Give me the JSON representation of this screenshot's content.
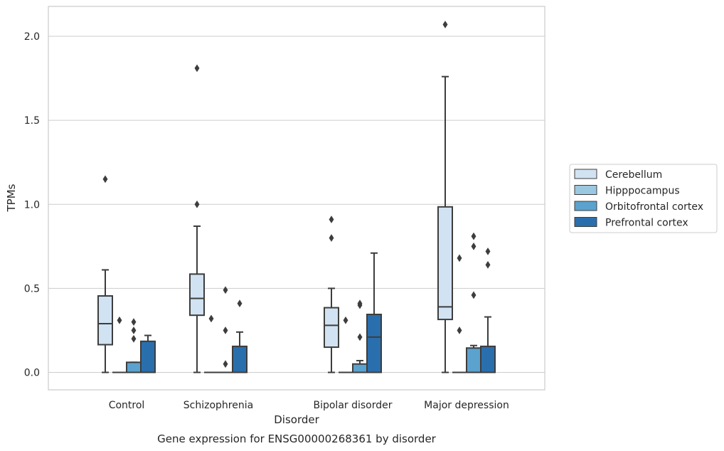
{
  "caption": "Gene expression for ENSG00000268361 by disorder",
  "chart_data": {
    "type": "box",
    "title": "",
    "xlabel": "Disorder",
    "ylabel": "TPMs",
    "ylim": [
      -0.1,
      2.18
    ],
    "yticks": [
      0.0,
      0.5,
      1.0,
      1.5,
      2.0
    ],
    "ytick_labels": [
      "0.0",
      "0.5",
      "1.0",
      "1.5",
      "2.0"
    ],
    "grid": "horizontal",
    "legend_position": "right",
    "categories": [
      "Control",
      "Schizophrenia",
      "Bipolar disorder",
      "Major depression"
    ],
    "series": [
      {
        "name": "Cerebellum",
        "color": "#d1e2f2",
        "boxes": [
          {
            "q1": 0.165,
            "median": 0.29,
            "q3": 0.455,
            "whisker_low": 0.0,
            "whisker_high": 0.61,
            "outliers": [
              1.15
            ]
          },
          {
            "q1": 0.34,
            "median": 0.44,
            "q3": 0.585,
            "whisker_low": 0.0,
            "whisker_high": 0.87,
            "outliers": [
              1.0,
              1.81
            ]
          },
          {
            "q1": 0.15,
            "median": 0.28,
            "q3": 0.385,
            "whisker_low": 0.0,
            "whisker_high": 0.5,
            "outliers": [
              0.8,
              0.91
            ]
          },
          {
            "q1": 0.315,
            "median": 0.39,
            "q3": 0.985,
            "whisker_low": 0.0,
            "whisker_high": 1.76,
            "outliers": [
              2.07
            ]
          }
        ]
      },
      {
        "name": "Hipppocampus",
        "color": "#9ac8e0",
        "boxes": [
          {
            "q1": 0.0,
            "median": 0.0,
            "q3": 0.0,
            "whisker_low": 0.0,
            "whisker_high": 0.0,
            "outliers": [
              0.31
            ]
          },
          {
            "q1": 0.0,
            "median": 0.0,
            "q3": 0.0,
            "whisker_low": 0.0,
            "whisker_high": 0.0,
            "outliers": [
              0.32
            ]
          },
          {
            "q1": 0.0,
            "median": 0.0,
            "q3": 0.0,
            "whisker_low": 0.0,
            "whisker_high": 0.0,
            "outliers": [
              0.31
            ]
          },
          {
            "q1": 0.0,
            "median": 0.0,
            "q3": 0.0,
            "whisker_low": 0.0,
            "whisker_high": 0.0,
            "outliers": [
              0.25,
              0.68
            ]
          }
        ]
      },
      {
        "name": "Orbitofrontal cortex",
        "color": "#5ba2cf",
        "boxes": [
          {
            "q1": 0.0,
            "median": 0.0,
            "q3": 0.06,
            "whisker_low": 0.0,
            "whisker_high": 0.06,
            "outliers": [
              0.2,
              0.25,
              0.3
            ]
          },
          {
            "q1": 0.0,
            "median": 0.0,
            "q3": 0.0,
            "whisker_low": 0.0,
            "whisker_high": 0.0,
            "outliers": [
              0.05,
              0.25,
              0.49
            ]
          },
          {
            "q1": 0.0,
            "median": 0.0,
            "q3": 0.05,
            "whisker_low": 0.0,
            "whisker_high": 0.07,
            "outliers": [
              0.21,
              0.4,
              0.41
            ]
          },
          {
            "q1": 0.0,
            "median": 0.0,
            "q3": 0.145,
            "whisker_low": 0.0,
            "whisker_high": 0.16,
            "outliers": [
              0.46,
              0.75,
              0.81
            ]
          }
        ]
      },
      {
        "name": "Prefrontal cortex",
        "color": "#2a6fad",
        "boxes": [
          {
            "q1": 0.0,
            "median": 0.0,
            "q3": 0.185,
            "whisker_low": 0.0,
            "whisker_high": 0.22,
            "outliers": []
          },
          {
            "q1": 0.0,
            "median": 0.0,
            "q3": 0.155,
            "whisker_low": 0.0,
            "whisker_high": 0.24,
            "outliers": [
              0.41
            ]
          },
          {
            "q1": 0.0,
            "median": 0.21,
            "q3": 0.345,
            "whisker_low": 0.0,
            "whisker_high": 0.71,
            "outliers": []
          },
          {
            "q1": 0.0,
            "median": 0.0,
            "q3": 0.155,
            "whisker_low": 0.0,
            "whisker_high": 0.33,
            "outliers": [
              0.64,
              0.72
            ]
          }
        ]
      }
    ]
  }
}
